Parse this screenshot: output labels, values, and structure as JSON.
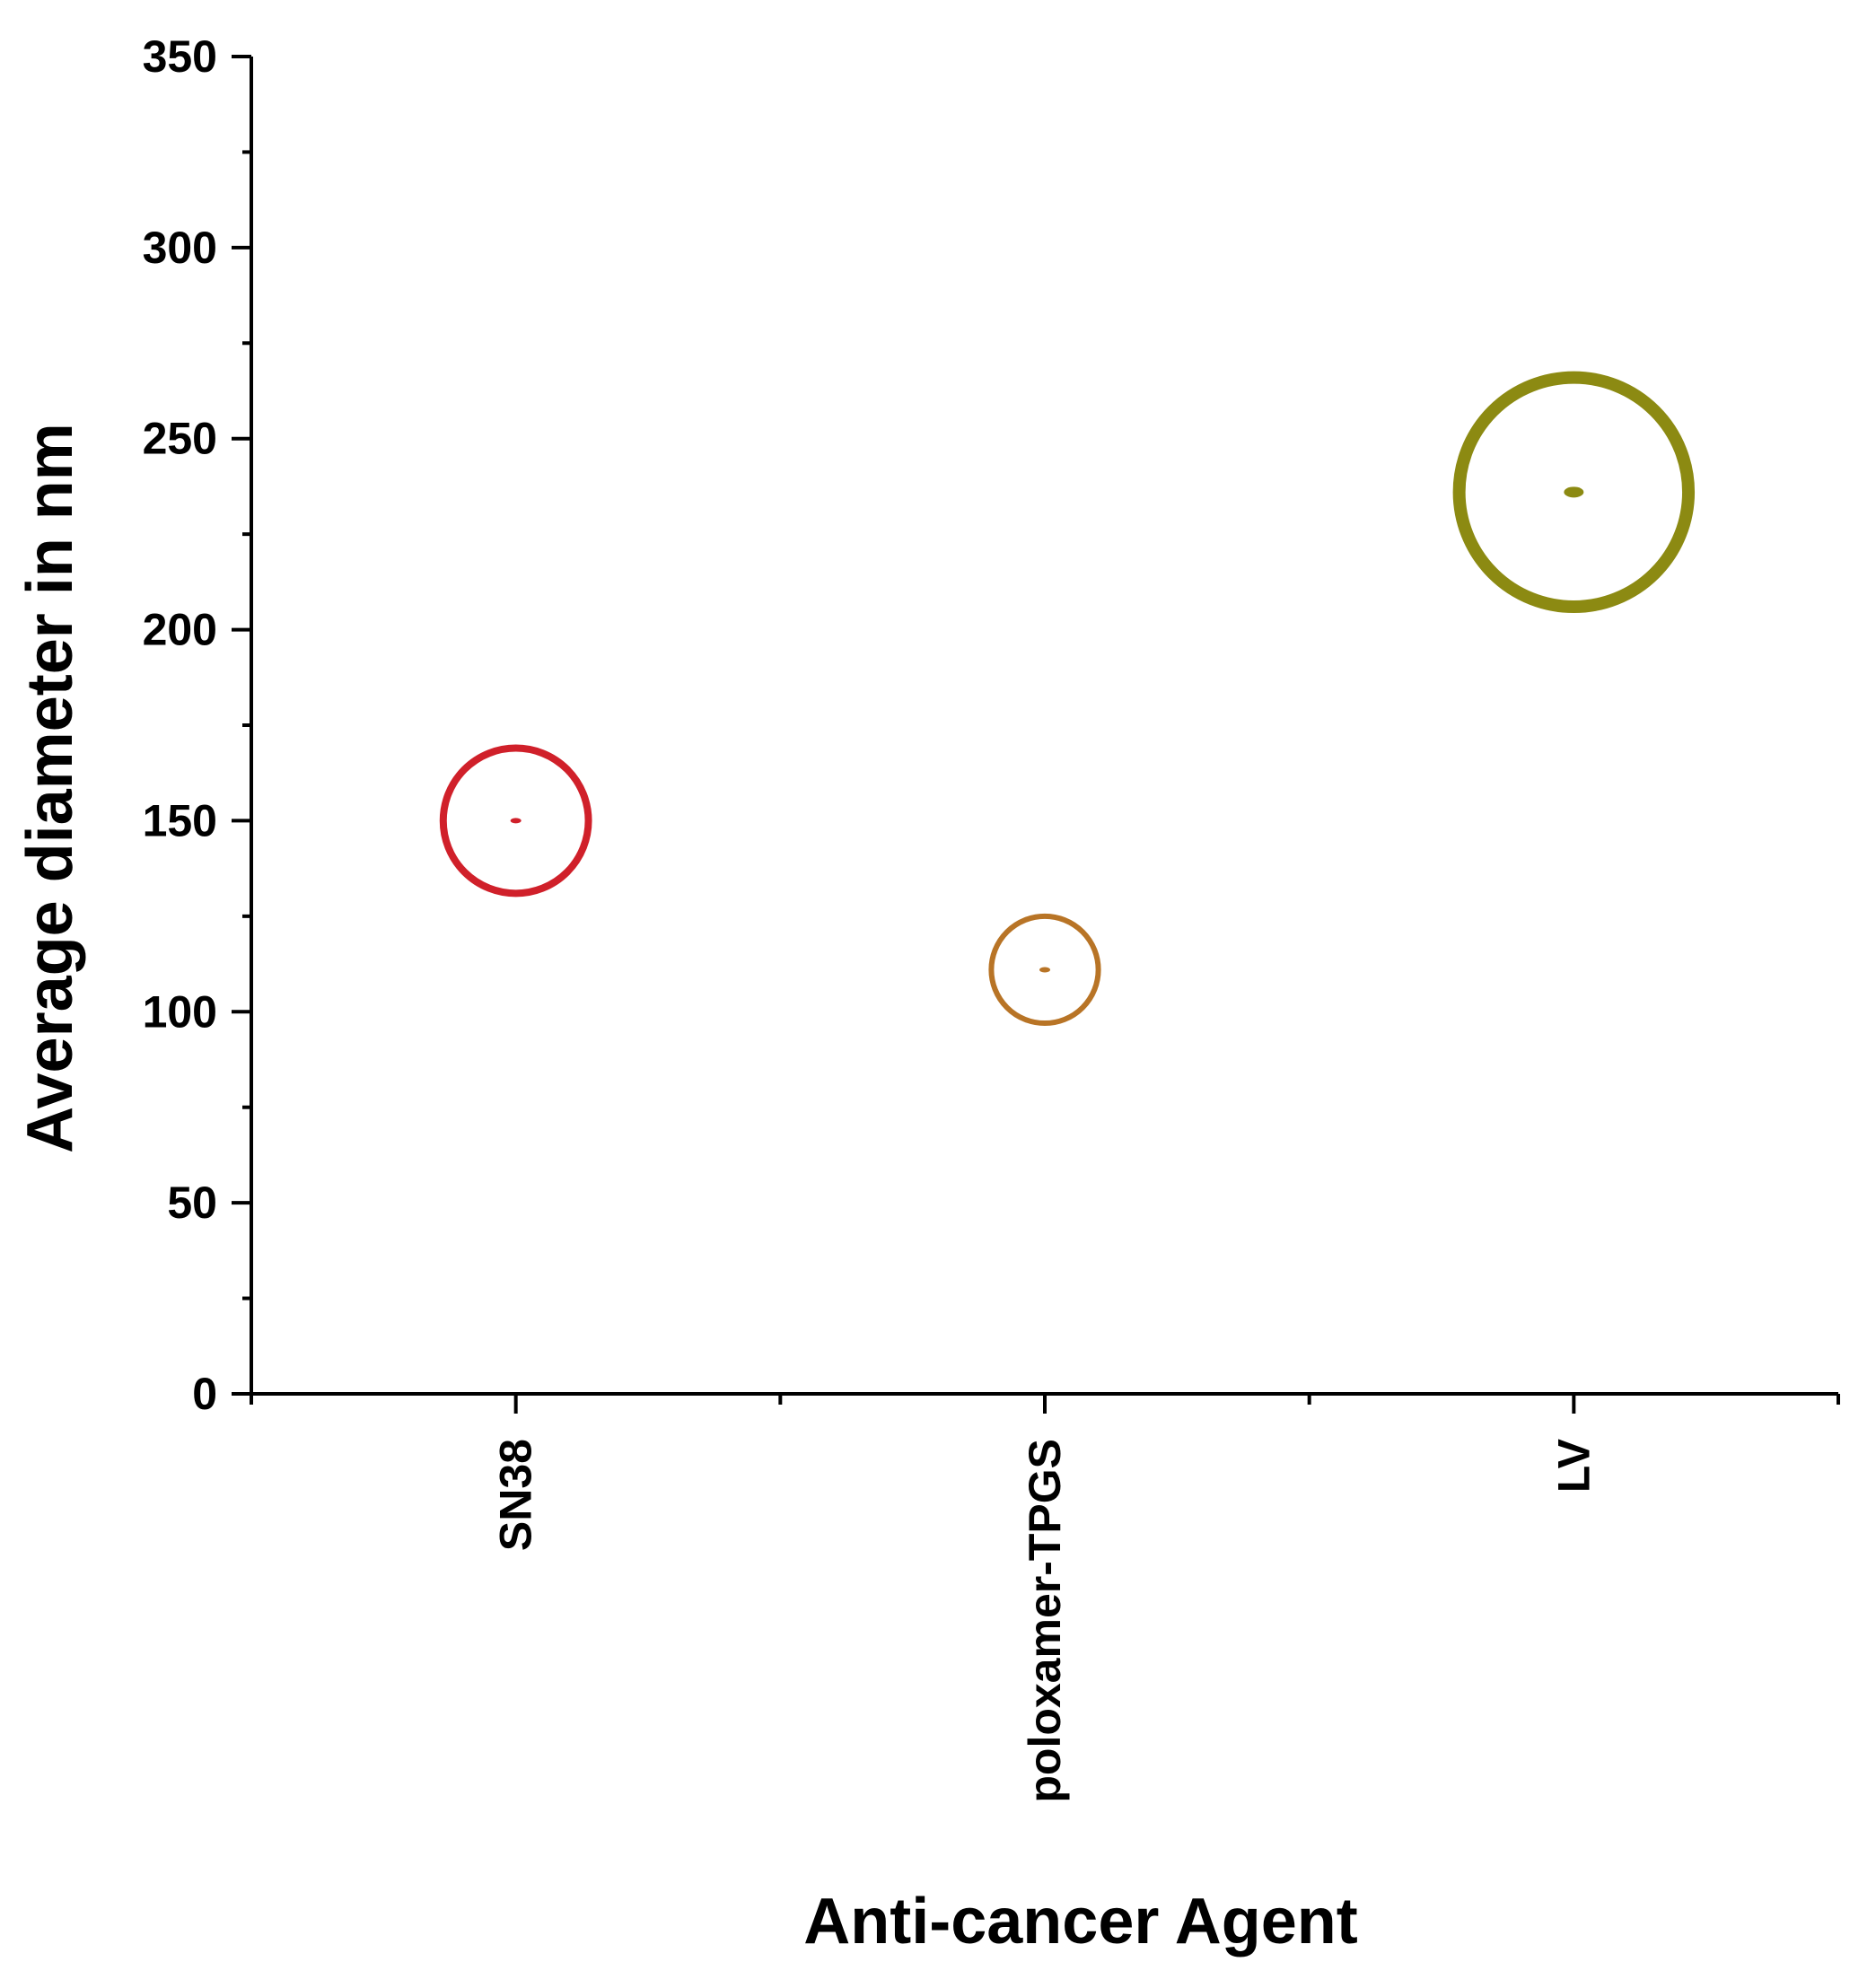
{
  "chart_data": {
    "type": "scatter",
    "title": "",
    "xlabel": "Anti-cancer Agent",
    "ylabel": "Average diameter in nm",
    "categories": [
      "SN38",
      "poloxamer-TPGS",
      "LV"
    ],
    "ylim": [
      0,
      350
    ],
    "yticks": [
      0,
      50,
      100,
      150,
      200,
      250,
      300,
      350
    ],
    "y_minor_step": 25,
    "grid": false,
    "legend": "none",
    "points": [
      {
        "category": "SN38",
        "value": 150,
        "color": "#d0202a"
      },
      {
        "category": "poloxamer-TPGS",
        "value": 111,
        "color": "#b87426"
      },
      {
        "category": "LV",
        "value": 236,
        "color": "#8c8a12"
      }
    ],
    "point_circle_sizes_y_units": [
      19,
      14,
      30
    ]
  }
}
